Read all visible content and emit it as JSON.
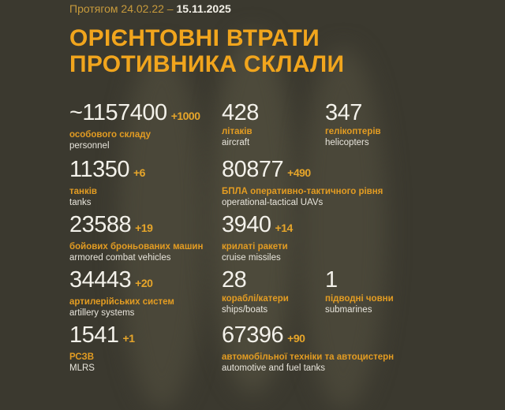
{
  "header": {
    "period_prefix": "Протягом 24.02.22 –",
    "period_end": "15.11.2025",
    "title_line1": "ОРІЄНТОВНІ ВТРАТИ",
    "title_line2": "ПРОТИВНИКА СКЛАЛИ"
  },
  "colors": {
    "background": "#3b392f",
    "accent": "#f1a51d",
    "text": "#f3f1ea"
  },
  "stats": [
    {
      "value": "~1157400",
      "increase": "+1000",
      "label_ua": "особового складу",
      "label_en": "personnel"
    },
    {
      "value": "428",
      "increase": "",
      "label_ua": "літаків",
      "label_en": "aircraft"
    },
    {
      "value": "347",
      "increase": "",
      "label_ua": "гелікоптерів",
      "label_en": "helicopters"
    },
    {
      "value": "11350",
      "increase": "+6",
      "label_ua": "танків",
      "label_en": "tanks"
    },
    {
      "value": "80877",
      "increase": "+490",
      "label_ua": "БПЛА оперативно-тактичного рівня",
      "label_en": "operational-tactical UAVs"
    },
    {
      "value": "23588",
      "increase": "+19",
      "label_ua": "бойових броньованих машин",
      "label_en": "armored combat vehicles"
    },
    {
      "value": "3940",
      "increase": "+14",
      "label_ua": "крилаті ракети",
      "label_en": "cruise missiles"
    },
    {
      "value": "34443",
      "increase": "+20",
      "label_ua": "артилерійських систем",
      "label_en": "artillery systems"
    },
    {
      "value": "28",
      "increase": "",
      "label_ua": "кораблі/катери",
      "label_en": "ships/boats"
    },
    {
      "value": "1",
      "increase": "",
      "label_ua": "підводні човни",
      "label_en": "submarines"
    },
    {
      "value": "1541",
      "increase": "+1",
      "label_ua": "РСЗВ",
      "label_en": "MLRS"
    },
    {
      "value": "67396",
      "increase": "+90",
      "label_ua": "автомобільної техніки та автоцистерн",
      "label_en": "automotive and fuel tanks"
    }
  ]
}
